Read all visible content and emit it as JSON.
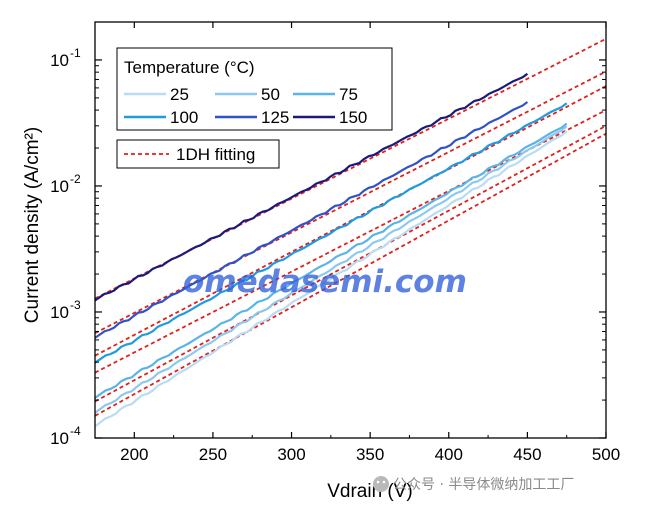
{
  "chart_data": {
    "type": "line",
    "xlabel": "Vdrain (V)",
    "ylabel": "Current density (A/cm²)",
    "xlim": [
      175,
      500
    ],
    "ylog": true,
    "ylim": [
      0.0001,
      0.2
    ],
    "xticks": [
      200,
      250,
      300,
      350,
      400,
      450,
      500
    ],
    "xtick_labels": [
      "200",
      "250",
      "300",
      "350",
      "400",
      "450",
      "500"
    ],
    "yticks": [
      {
        "value": 0.1,
        "base": "10",
        "exp": "-1"
      },
      {
        "value": 0.01,
        "base": "10",
        "exp": "-2"
      },
      {
        "value": 0.001,
        "base": "10",
        "exp": "-3"
      },
      {
        "value": 0.0001,
        "base": "10",
        "exp": "-4"
      }
    ],
    "legend": {
      "title": "Temperature (°C)",
      "placement": "top-left",
      "fit_label": "1DH fitting"
    },
    "series": [
      {
        "name": "25",
        "color": "#b8dcf4",
        "x": [
          175,
          475
        ],
        "y": [
          0.000125,
          0.027
        ]
      },
      {
        "name": "50",
        "color": "#8cc9ee",
        "x": [
          175,
          475
        ],
        "y": [
          0.00016,
          0.0295
        ]
      },
      {
        "name": "75",
        "color": "#5ab4e8",
        "x": [
          175,
          475
        ],
        "y": [
          0.00021,
          0.031
        ]
      },
      {
        "name": "100",
        "color": "#1e9be2",
        "x": [
          175,
          475
        ],
        "y": [
          0.0004,
          0.045
        ]
      },
      {
        "name": "125",
        "color": "#2f52c8",
        "x": [
          175,
          450
        ],
        "y": [
          0.00063,
          0.046
        ]
      },
      {
        "name": "150",
        "color": "#1b1a7a",
        "x": [
          175,
          450
        ],
        "y": [
          0.00125,
          0.077
        ]
      }
    ],
    "fits": [
      {
        "name": "1DH fitting",
        "color": "#e0201c",
        "x": [
          175,
          500
        ],
        "y": [
          0.00015,
          0.026
        ]
      },
      {
        "name": "1DH fitting",
        "color": "#e0201c",
        "x": [
          175,
          500
        ],
        "y": [
          0.000195,
          0.03
        ]
      },
      {
        "name": "1DH fitting",
        "color": "#e0201c",
        "x": [
          175,
          500
        ],
        "y": [
          0.00033,
          0.04
        ]
      },
      {
        "name": "1DH fitting",
        "color": "#e0201c",
        "x": [
          175,
          500
        ],
        "y": [
          0.00045,
          0.062
        ]
      },
      {
        "name": "1DH fitting",
        "color": "#e0201c",
        "x": [
          175,
          500
        ],
        "y": [
          0.00068,
          0.081
        ]
      },
      {
        "name": "1DH fitting",
        "color": "#e0201c",
        "x": [
          175,
          500
        ],
        "y": [
          0.00128,
          0.147
        ]
      }
    ]
  },
  "watermark": "omedasemi.com",
  "wechat_caption": "公众号 · 半导体微纳加工工厂"
}
